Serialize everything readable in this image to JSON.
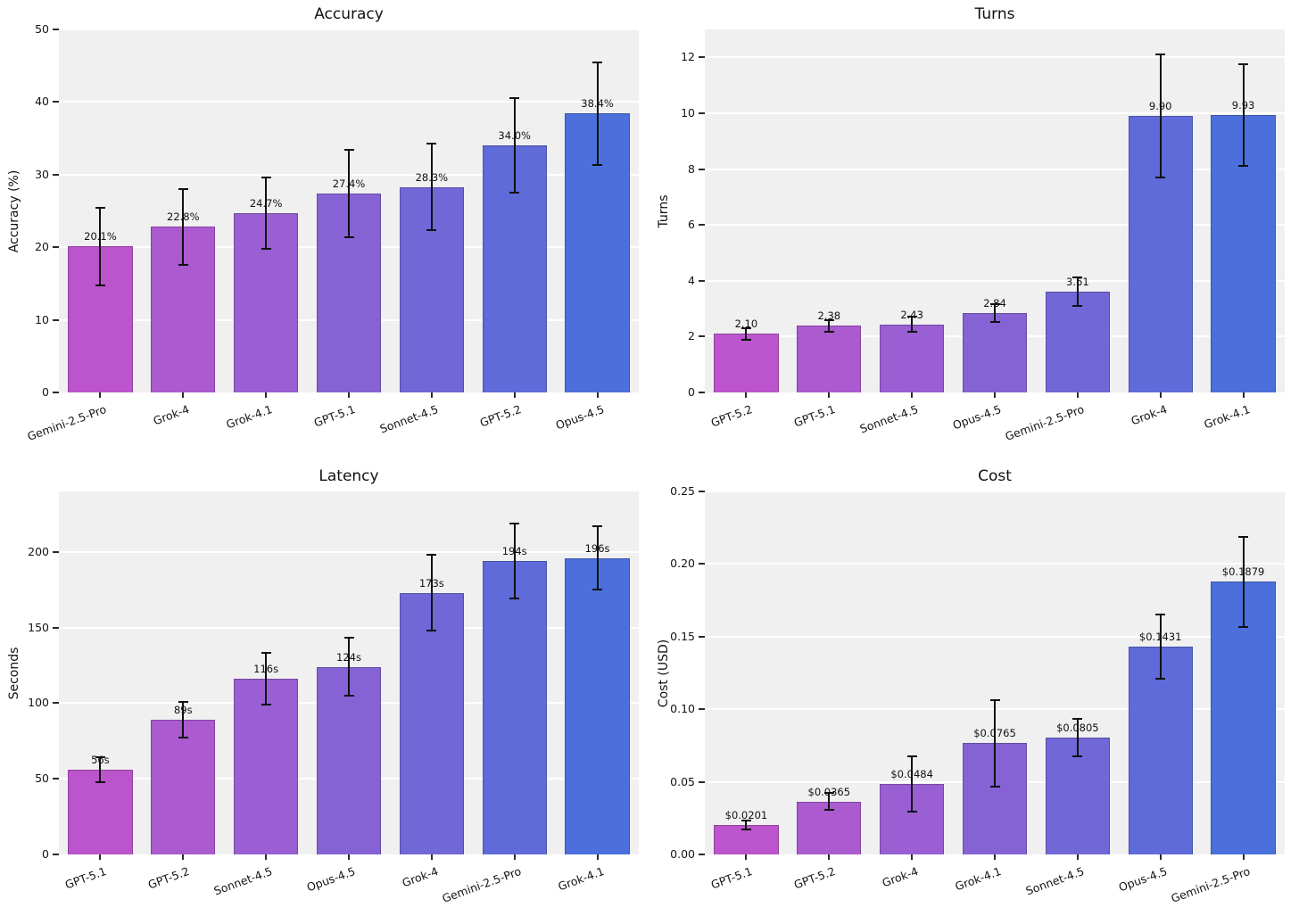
{
  "figure": {
    "background": "#ffffff",
    "panel_background": "#f0f0f1",
    "grid_color": "#ffffff",
    "error_bar_color": "#111111",
    "text_color": "#111111",
    "bar_palette": [
      "#bc55cd",
      "#ab5ad0",
      "#995fd3",
      "#8563d5",
      "#7267d7",
      "#5f6bd9",
      "#4c70db"
    ]
  },
  "chart_data": [
    {
      "id": "accuracy",
      "type": "bar",
      "title": "Accuracy",
      "xlabel": "",
      "ylabel": "Accuracy (%)",
      "categories": [
        "Gemini-2.5-Pro",
        "Grok-4",
        "Grok-4.1",
        "GPT-5.1",
        "Sonnet-4.5",
        "GPT-5.2",
        "Opus-4.5"
      ],
      "values": [
        20.1,
        22.8,
        24.7,
        27.4,
        28.3,
        34.0,
        38.4
      ],
      "errors": [
        5.3,
        5.2,
        4.9,
        6.0,
        6.0,
        6.5,
        7.1
      ],
      "bar_labels": [
        "20.1%",
        "22.8%",
        "24.7%",
        "27.4%",
        "28.3%",
        "34.0%",
        "38.4%"
      ],
      "ylim": [
        0,
        50
      ],
      "yticks": [
        0,
        10,
        20,
        30,
        40,
        50
      ],
      "ytick_labels": [
        "0",
        "10",
        "20",
        "30",
        "40",
        "50"
      ],
      "grid": true,
      "legend": null
    },
    {
      "id": "turns",
      "type": "bar",
      "title": "Turns",
      "xlabel": "",
      "ylabel": "Turns",
      "categories": [
        "GPT-5.2",
        "GPT-5.1",
        "Sonnet-4.5",
        "Opus-4.5",
        "Gemini-2.5-Pro",
        "Grok-4",
        "Grok-4.1"
      ],
      "values": [
        2.1,
        2.38,
        2.43,
        2.84,
        3.61,
        9.9,
        9.93
      ],
      "errors": [
        0.2,
        0.22,
        0.27,
        0.33,
        0.5,
        2.2,
        1.83
      ],
      "bar_labels": [
        "2.10",
        "2.38",
        "2.43",
        "2.84",
        "3.61",
        "9.90",
        "9.93"
      ],
      "ylim": [
        0,
        13
      ],
      "yticks": [
        0,
        2,
        4,
        6,
        8,
        10,
        12
      ],
      "ytick_labels": [
        "0",
        "2",
        "4",
        "6",
        "8",
        "10",
        "12"
      ],
      "grid": true,
      "legend": null
    },
    {
      "id": "latency",
      "type": "bar",
      "title": "Latency",
      "xlabel": "",
      "ylabel": "Seconds",
      "categories": [
        "GPT-5.1",
        "GPT-5.2",
        "Sonnet-4.5",
        "Opus-4.5",
        "Grok-4",
        "Gemini-2.5-Pro",
        "Grok-4.1"
      ],
      "values": [
        56,
        89,
        116,
        124,
        173,
        194,
        196
      ],
      "errors": [
        8,
        12,
        17,
        19,
        25,
        25,
        21
      ],
      "bar_labels": [
        "56s",
        "89s",
        "116s",
        "124s",
        "173s",
        "194s",
        "196s"
      ],
      "ylim": [
        0,
        240
      ],
      "yticks": [
        0,
        50,
        100,
        150,
        200
      ],
      "ytick_labels": [
        "0",
        "50",
        "100",
        "150",
        "200"
      ],
      "grid": true,
      "legend": null
    },
    {
      "id": "cost",
      "type": "bar",
      "title": "Cost",
      "xlabel": "",
      "ylabel": "Cost (USD)",
      "categories": [
        "GPT-5.1",
        "GPT-5.2",
        "Grok-4",
        "Grok-4.1",
        "Sonnet-4.5",
        "Opus-4.5",
        "Gemini-2.5-Pro"
      ],
      "values": [
        0.0201,
        0.0365,
        0.0484,
        0.0765,
        0.0805,
        0.1431,
        0.1879
      ],
      "errors": [
        0.003,
        0.006,
        0.019,
        0.03,
        0.013,
        0.022,
        0.031
      ],
      "bar_labels": [
        "$0.0201",
        "$0.0365",
        "$0.0484",
        "$0.0765",
        "$0.0805",
        "$0.1431",
        "$0.1879"
      ],
      "ylim": [
        0,
        0.25
      ],
      "yticks": [
        0,
        0.05,
        0.1,
        0.15,
        0.2,
        0.25
      ],
      "ytick_labels": [
        "0.00",
        "0.05",
        "0.10",
        "0.15",
        "0.20",
        "0.25"
      ],
      "grid": true,
      "legend": null
    }
  ]
}
